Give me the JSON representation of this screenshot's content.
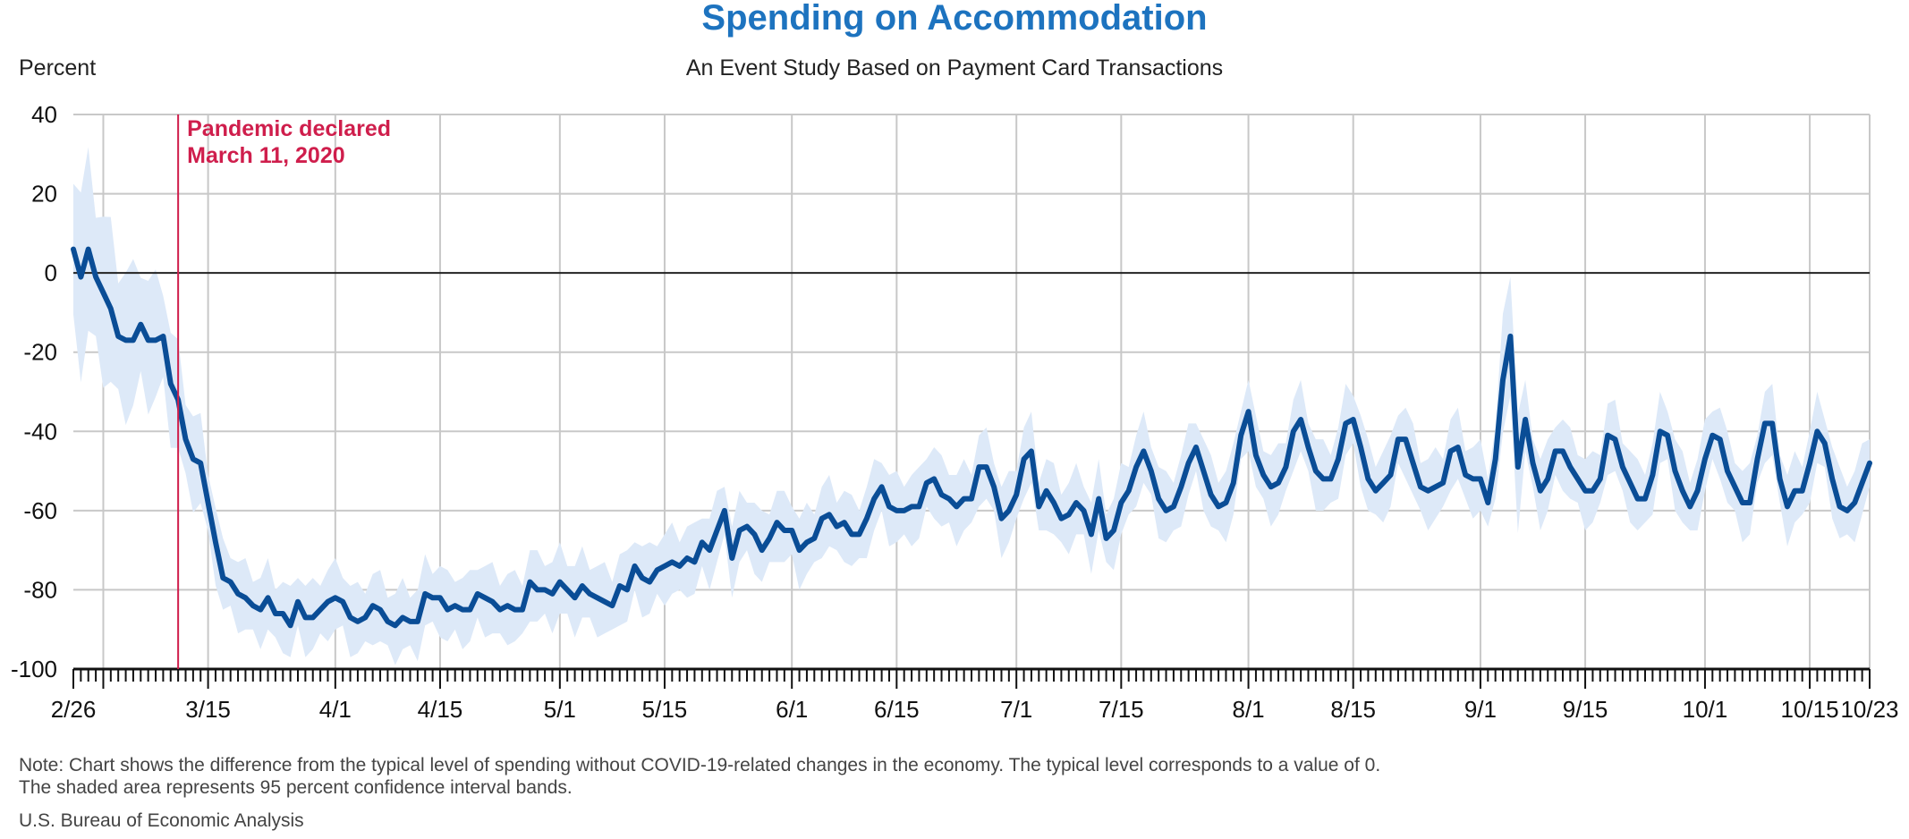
{
  "chart_data": {
    "type": "line",
    "title": "Spending on Accommodation",
    "subtitle": "An Event Study Based on Payment Card Transactions",
    "ylabel": "Percent",
    "xlabel": "",
    "ylim": [
      -100,
      40
    ],
    "yticks": [
      40,
      20,
      0,
      -20,
      -40,
      -60,
      -80,
      -100
    ],
    "x_domain": [
      "2/26",
      "10/23"
    ],
    "x_tick_labels": [
      {
        "label": "2/26",
        "day": 0
      },
      {
        "label": "3/15",
        "day": 18
      },
      {
        "label": "4/1",
        "day": 35
      },
      {
        "label": "4/15",
        "day": 49
      },
      {
        "label": "5/1",
        "day": 65
      },
      {
        "label": "5/15",
        "day": 79
      },
      {
        "label": "6/1",
        "day": 96
      },
      {
        "label": "6/15",
        "day": 110
      },
      {
        "label": "7/1",
        "day": 126
      },
      {
        "label": "7/15",
        "day": 140
      },
      {
        "label": "8/1",
        "day": 157
      },
      {
        "label": "8/15",
        "day": 171
      },
      {
        "label": "9/1",
        "day": 188
      },
      {
        "label": "9/15",
        "day": 202
      },
      {
        "label": "10/1",
        "day": 218
      },
      {
        "label": "10/15",
        "day": 232
      },
      {
        "label": "10/23",
        "day": 240
      }
    ],
    "vertical_gridline_days": [
      4,
      18,
      35,
      49,
      65,
      79,
      96,
      110,
      126,
      140,
      157,
      171,
      188,
      202,
      218,
      232,
      240
    ],
    "grid": true,
    "zero_line": true,
    "series": [
      {
        "color": "#0a4d96",
        "points": [
          [
            0,
            6
          ],
          [
            1,
            -1
          ],
          [
            2,
            6
          ],
          [
            3,
            -1
          ],
          [
            4,
            -5
          ],
          [
            5,
            -9
          ],
          [
            6,
            -16
          ],
          [
            7,
            -17
          ],
          [
            8,
            -17
          ],
          [
            9,
            -13
          ],
          [
            10,
            -17
          ],
          [
            11,
            -17
          ],
          [
            12,
            -16
          ],
          [
            13,
            -28
          ],
          [
            14,
            -32
          ],
          [
            15,
            -42
          ],
          [
            16,
            -47
          ],
          [
            17,
            -48
          ],
          [
            18,
            -58
          ],
          [
            19,
            -68
          ],
          [
            20,
            -77
          ],
          [
            21,
            -78
          ],
          [
            22,
            -81
          ],
          [
            23,
            -82
          ],
          [
            24,
            -84
          ],
          [
            25,
            -85
          ],
          [
            26,
            -82
          ],
          [
            27,
            -86
          ],
          [
            28,
            -86
          ],
          [
            29,
            -89
          ],
          [
            30,
            -83
          ],
          [
            31,
            -87
          ],
          [
            32,
            -87
          ],
          [
            33,
            -85
          ],
          [
            34,
            -83
          ],
          [
            35,
            -82
          ],
          [
            36,
            -83
          ],
          [
            37,
            -87
          ],
          [
            38,
            -88
          ],
          [
            39,
            -87
          ],
          [
            40,
            -84
          ],
          [
            41,
            -85
          ],
          [
            42,
            -88
          ],
          [
            43,
            -89
          ],
          [
            44,
            -87
          ],
          [
            45,
            -88
          ],
          [
            46,
            -88
          ],
          [
            47,
            -81
          ],
          [
            48,
            -82
          ],
          [
            49,
            -82
          ],
          [
            50,
            -85
          ],
          [
            51,
            -84
          ],
          [
            52,
            -85
          ],
          [
            53,
            -85
          ],
          [
            54,
            -81
          ],
          [
            55,
            -82
          ],
          [
            56,
            -83
          ],
          [
            57,
            -85
          ],
          [
            58,
            -84
          ],
          [
            59,
            -85
          ],
          [
            60,
            -85
          ],
          [
            61,
            -78
          ],
          [
            62,
            -80
          ],
          [
            63,
            -80
          ],
          [
            64,
            -81
          ],
          [
            65,
            -78
          ],
          [
            66,
            -80
          ],
          [
            67,
            -82
          ],
          [
            68,
            -79
          ],
          [
            69,
            -81
          ],
          [
            70,
            -82
          ],
          [
            71,
            -83
          ],
          [
            72,
            -84
          ],
          [
            73,
            -79
          ],
          [
            74,
            -80
          ],
          [
            75,
            -74
          ],
          [
            76,
            -77
          ],
          [
            77,
            -78
          ],
          [
            78,
            -75
          ],
          [
            79,
            -74
          ],
          [
            80,
            -73
          ],
          [
            81,
            -74
          ],
          [
            82,
            -72
          ],
          [
            83,
            -73
          ],
          [
            84,
            -68
          ],
          [
            85,
            -70
          ],
          [
            86,
            -65
          ],
          [
            87,
            -60
          ],
          [
            88,
            -72
          ],
          [
            89,
            -65
          ],
          [
            90,
            -64
          ],
          [
            91,
            -66
          ],
          [
            92,
            -70
          ],
          [
            93,
            -67
          ],
          [
            94,
            -63
          ],
          [
            95,
            -65
          ],
          [
            96,
            -65
          ],
          [
            97,
            -70
          ],
          [
            98,
            -68
          ],
          [
            99,
            -67
          ],
          [
            100,
            -62
          ],
          [
            101,
            -61
          ],
          [
            102,
            -64
          ],
          [
            103,
            -63
          ],
          [
            104,
            -66
          ],
          [
            105,
            -66
          ],
          [
            106,
            -62
          ],
          [
            107,
            -57
          ],
          [
            108,
            -54
          ],
          [
            109,
            -59
          ],
          [
            110,
            -60
          ],
          [
            111,
            -60
          ],
          [
            112,
            -59
          ],
          [
            113,
            -59
          ],
          [
            114,
            -53
          ],
          [
            115,
            -52
          ],
          [
            116,
            -56
          ],
          [
            117,
            -57
          ],
          [
            118,
            -59
          ],
          [
            119,
            -57
          ],
          [
            120,
            -57
          ],
          [
            121,
            -49
          ],
          [
            122,
            -49
          ],
          [
            123,
            -54
          ],
          [
            124,
            -62
          ],
          [
            125,
            -60
          ],
          [
            126,
            -56
          ],
          [
            127,
            -47
          ],
          [
            128,
            -45
          ],
          [
            129,
            -59
          ],
          [
            130,
            -55
          ],
          [
            131,
            -58
          ],
          [
            132,
            -62
          ],
          [
            133,
            -61
          ],
          [
            134,
            -58
          ],
          [
            135,
            -60
          ],
          [
            136,
            -66
          ],
          [
            137,
            -57
          ],
          [
            138,
            -67
          ],
          [
            139,
            -65
          ],
          [
            140,
            -58
          ],
          [
            141,
            -55
          ],
          [
            142,
            -49
          ],
          [
            143,
            -45
          ],
          [
            144,
            -50
          ],
          [
            145,
            -57
          ],
          [
            146,
            -60
          ],
          [
            147,
            -59
          ],
          [
            148,
            -54
          ],
          [
            149,
            -48
          ],
          [
            150,
            -44
          ],
          [
            151,
            -50
          ],
          [
            152,
            -56
          ],
          [
            153,
            -59
          ],
          [
            154,
            -58
          ],
          [
            155,
            -53
          ],
          [
            156,
            -41
          ],
          [
            157,
            -35
          ],
          [
            158,
            -46
          ],
          [
            159,
            -51
          ],
          [
            160,
            -54
          ],
          [
            161,
            -53
          ],
          [
            162,
            -49
          ],
          [
            163,
            -40
          ],
          [
            164,
            -37
          ],
          [
            165,
            -44
          ],
          [
            166,
            -50
          ],
          [
            167,
            -52
          ],
          [
            168,
            -52
          ],
          [
            169,
            -47
          ],
          [
            170,
            -38
          ],
          [
            171,
            -37
          ],
          [
            172,
            -44
          ],
          [
            173,
            -52
          ],
          [
            174,
            -55
          ],
          [
            175,
            -53
          ],
          [
            176,
            -51
          ],
          [
            177,
            -42
          ],
          [
            178,
            -42
          ],
          [
            179,
            -48
          ],
          [
            180,
            -54
          ],
          [
            181,
            -55
          ],
          [
            182,
            -54
          ],
          [
            183,
            -53
          ],
          [
            184,
            -45
          ],
          [
            185,
            -44
          ],
          [
            186,
            -51
          ],
          [
            187,
            -52
          ],
          [
            188,
            -52
          ],
          [
            189,
            -58
          ],
          [
            190,
            -47
          ],
          [
            191,
            -27
          ],
          [
            192,
            -16
          ],
          [
            193,
            -49
          ],
          [
            194,
            -37
          ],
          [
            195,
            -48
          ],
          [
            196,
            -55
          ],
          [
            197,
            -52
          ],
          [
            198,
            -45
          ],
          [
            199,
            -45
          ],
          [
            200,
            -49
          ],
          [
            201,
            -52
          ],
          [
            202,
            -55
          ],
          [
            203,
            -55
          ],
          [
            204,
            -52
          ],
          [
            205,
            -41
          ],
          [
            206,
            -42
          ],
          [
            207,
            -49
          ],
          [
            208,
            -53
          ],
          [
            209,
            -57
          ],
          [
            210,
            -57
          ],
          [
            211,
            -51
          ],
          [
            212,
            -40
          ],
          [
            213,
            -41
          ],
          [
            214,
            -50
          ],
          [
            215,
            -55
          ],
          [
            216,
            -59
          ],
          [
            217,
            -55
          ],
          [
            218,
            -47
          ],
          [
            219,
            -41
          ],
          [
            220,
            -42
          ],
          [
            221,
            -50
          ],
          [
            222,
            -54
          ],
          [
            223,
            -58
          ],
          [
            224,
            -58
          ],
          [
            225,
            -47
          ],
          [
            226,
            -38
          ],
          [
            227,
            -38
          ],
          [
            228,
            -52
          ],
          [
            229,
            -59
          ],
          [
            230,
            -55
          ],
          [
            231,
            -55
          ],
          [
            232,
            -48
          ],
          [
            233,
            -40
          ],
          [
            234,
            -43
          ],
          [
            235,
            -52
          ],
          [
            236,
            -59
          ],
          [
            237,
            -60
          ],
          [
            238,
            -58
          ],
          [
            239,
            -53
          ],
          [
            240,
            -48
          ]
        ]
      }
    ],
    "confidence_band": {
      "label": "95 percent confidence interval bands",
      "color": "#dde9f8",
      "half_width_start": 22,
      "half_width_end": 8,
      "half_width_spike": 20,
      "spike_day": 192
    },
    "annotation": {
      "day": 14,
      "color": "#cf1e4c",
      "line1": "Pandemic declared",
      "line2": "March 11, 2020"
    }
  },
  "notes": {
    "line1": "Note: Chart shows the difference from the typical level of spending without COVID-19-related changes in the economy. The typical level corresponds to a value of 0.",
    "line2": "The shaded area represents 95 percent confidence interval bands.",
    "source": "U.S. Bureau of Economic Analysis"
  }
}
